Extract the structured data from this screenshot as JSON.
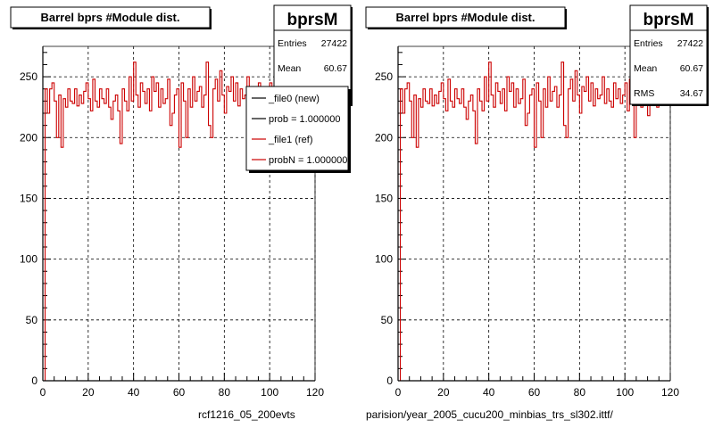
{
  "chart_data": [
    {
      "type": "line",
      "title": "Barrel bprs #Module dist.",
      "xlim": [
        0,
        120
      ],
      "ylim": [
        0,
        275
      ],
      "x_ticks": [
        0,
        20,
        40,
        60,
        80,
        100,
        120
      ],
      "y_ticks": [
        0,
        50,
        100,
        150,
        200,
        250
      ],
      "grid": true,
      "footer_label": "rcf1216_05_200evts",
      "stats": {
        "name": "bprsM",
        "rows": [
          {
            "label": "Entries",
            "value": "27422"
          },
          {
            "label": "Mean",
            "value": "60.67"
          },
          {
            "label": "RMS",
            "value": "34.67"
          }
        ]
      },
      "legend": {
        "placement": "top-right",
        "entries": [
          {
            "text": "_file0 (new)",
            "color": "#000000"
          },
          {
            "text": "prob = 1.000000",
            "color": "#000000"
          },
          {
            "text": "_file1 (ref)",
            "color": "#cc0000"
          },
          {
            "text": "probN = 1.000000",
            "color": "#cc0000"
          }
        ]
      },
      "series": [
        {
          "name": "_file1 (ref)",
          "color": "#cc0000",
          "x_range": [
            0,
            120
          ],
          "values": [
            0,
            240,
            220,
            240,
            245,
            230,
            200,
            235,
            192,
            232,
            225,
            240,
            230,
            228,
            240,
            226,
            235,
            228,
            238,
            245,
            232,
            222,
            248,
            230,
            225,
            240,
            232,
            228,
            240,
            225,
            215,
            230,
            235,
            222,
            195,
            240,
            230,
            222,
            250,
            230,
            262,
            235,
            225,
            245,
            238,
            228,
            240,
            222,
            250,
            238,
            245,
            225,
            240,
            228,
            232,
            248,
            210,
            220,
            235,
            240,
            192,
            245,
            230,
            200,
            240,
            225,
            250,
            230,
            238,
            242,
            225,
            235,
            262,
            210,
            200,
            240,
            248,
            230,
            255,
            235,
            220,
            242,
            238,
            250,
            230,
            245,
            226,
            240,
            232,
            235,
            250,
            228,
            240,
            230,
            225,
            245,
            232,
            240,
            228,
            235,
            245,
            222,
            248,
            230,
            200,
            240,
            230,
            225,
            242,
            230,
            218,
            240,
            230,
            250,
            225,
            238,
            240,
            228,
            235,
            245
          ]
        }
      ]
    },
    {
      "type": "line",
      "title": "Barrel bprs #Module dist.",
      "xlim": [
        0,
        120
      ],
      "ylim": [
        0,
        275
      ],
      "x_ticks": [
        0,
        20,
        40,
        60,
        80,
        100,
        120
      ],
      "y_ticks": [
        0,
        50,
        100,
        150,
        200,
        250
      ],
      "grid": true,
      "footer_label": "parision/year_2005_cucu200_minbias_trs_sl302.ittf/",
      "stats": {
        "name": "bprsM",
        "rows": [
          {
            "label": "Entries",
            "value": "27422"
          },
          {
            "label": "Mean",
            "value": "60.67"
          },
          {
            "label": "RMS",
            "value": "34.67"
          }
        ]
      },
      "series": [
        {
          "name": "",
          "color": "#cc0000",
          "x_range": [
            0,
            120
          ],
          "values": [
            0,
            240,
            220,
            240,
            245,
            230,
            200,
            235,
            192,
            232,
            225,
            240,
            230,
            228,
            240,
            226,
            235,
            228,
            238,
            245,
            232,
            222,
            248,
            230,
            225,
            240,
            232,
            228,
            240,
            225,
            215,
            230,
            235,
            222,
            195,
            240,
            230,
            222,
            250,
            230,
            262,
            235,
            225,
            245,
            238,
            228,
            240,
            222,
            250,
            238,
            245,
            225,
            240,
            228,
            232,
            248,
            210,
            220,
            235,
            240,
            192,
            245,
            230,
            200,
            240,
            225,
            250,
            230,
            238,
            242,
            225,
            235,
            262,
            210,
            200,
            240,
            248,
            230,
            255,
            235,
            220,
            242,
            238,
            250,
            230,
            245,
            226,
            240,
            232,
            235,
            250,
            228,
            240,
            230,
            225,
            245,
            232,
            240,
            228,
            235,
            245,
            222,
            248,
            230,
            200,
            240,
            230,
            225,
            242,
            230,
            218,
            240,
            230,
            250,
            225,
            238,
            240,
            228,
            235,
            245
          ]
        }
      ]
    }
  ]
}
